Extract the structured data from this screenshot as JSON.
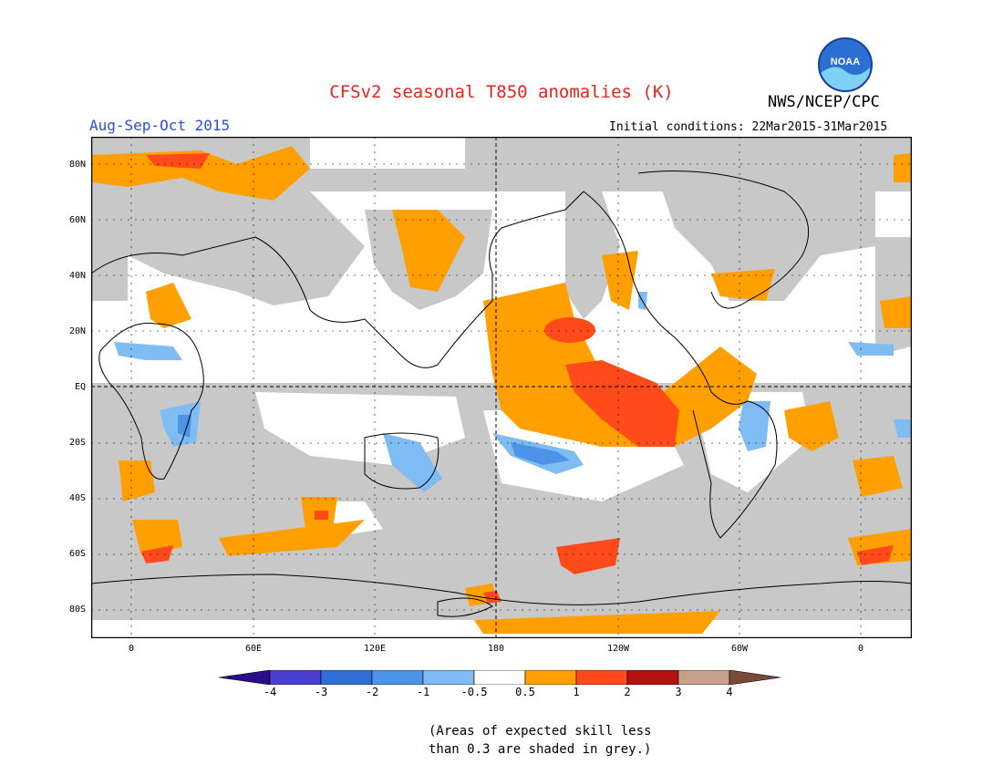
{
  "header": {
    "title": "CFSv2 seasonal T850 anomalies (K)",
    "agency": "NWS/NCEP/CPC",
    "logo_text": "NOAA",
    "season": "Aug-Sep-Oct 2015",
    "initial_conditions": "Initial conditions: 22Mar2015-31Mar2015"
  },
  "axes": {
    "lat_labels": [
      "80N",
      "60N",
      "40N",
      "20N",
      "EQ",
      "20S",
      "40S",
      "60S",
      "80S"
    ],
    "lon_labels": [
      "0",
      "60E",
      "120E",
      "180",
      "120W",
      "60W",
      "0"
    ]
  },
  "colorbar": {
    "labels": [
      "-4",
      "-3",
      "-2",
      "-1",
      "-0.5",
      "0.5",
      "1",
      "2",
      "3",
      "4"
    ],
    "colors": [
      "#2a0c8c",
      "#4a3fd0",
      "#2f6fd6",
      "#4b94e8",
      "#7fbcf3",
      "#ffffff",
      "#ff9f00",
      "#ff4a1a",
      "#b5120f",
      "#c7a08c",
      "#7a4a3a"
    ]
  },
  "legend_note": {
    "line1": "(Areas of expected skill less",
    "line2": "than 0.3 are shaded in grey.)"
  },
  "colors": {
    "title": "#e8231c",
    "season": "#2b4fd6",
    "grey_low_skill": "#c8c8c8"
  }
}
